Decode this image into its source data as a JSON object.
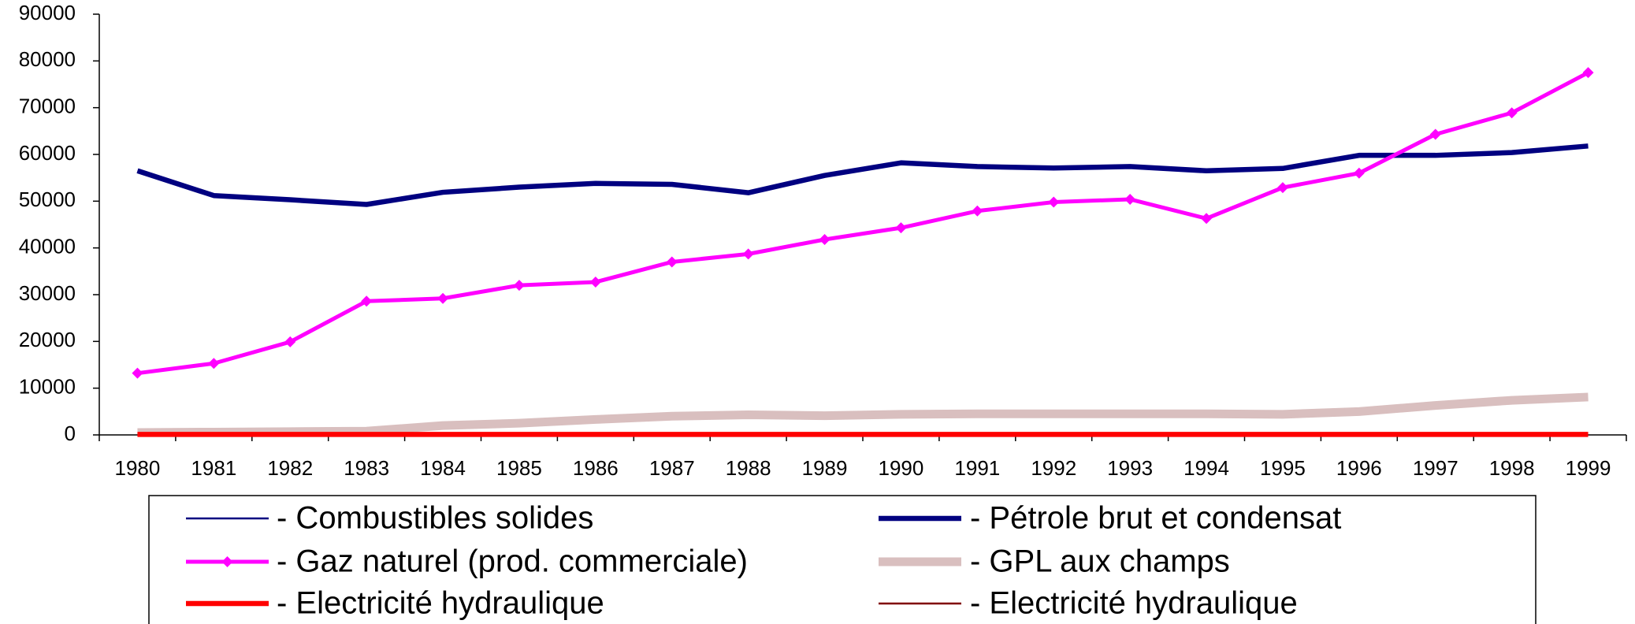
{
  "chart_data": {
    "type": "line",
    "categories": [
      "1980",
      "1981",
      "1982",
      "1983",
      "1984",
      "1985",
      "1986",
      "1987",
      "1988",
      "1989",
      "1990",
      "1991",
      "1992",
      "1993",
      "1994",
      "1995",
      "1996",
      "1997",
      "1998",
      "1999"
    ],
    "series": [
      {
        "name": "- Combustibles solides",
        "color": "#000080",
        "values": [
          0,
          0,
          0,
          0,
          0,
          0,
          0,
          0,
          0,
          0,
          0,
          0,
          0,
          0,
          0,
          0,
          0,
          0,
          0,
          0
        ]
      },
      {
        "name": "- Pétrole brut et condensat",
        "color": "#000080",
        "values": [
          56500,
          51200,
          50300,
          49300,
          51900,
          53000,
          53800,
          53600,
          51800,
          55500,
          58200,
          57400,
          57100,
          57400,
          56500,
          57000,
          59800,
          59800,
          60400,
          61800
        ]
      },
      {
        "name": "- Gaz naturel (prod. commerciale)",
        "color": "#ff00ff",
        "marker": "diamond",
        "values": [
          13200,
          15300,
          19900,
          28600,
          29200,
          32000,
          32700,
          37000,
          38700,
          41800,
          44300,
          47900,
          49800,
          50400,
          46300,
          52900,
          56000,
          64300,
          68900,
          77500
        ]
      },
      {
        "name": "- GPL aux champs",
        "color": "#d9bfbf",
        "values": [
          500,
          600,
          700,
          800,
          2000,
          2500,
          3300,
          4000,
          4300,
          4100,
          4400,
          4500,
          4500,
          4500,
          4500,
          4400,
          5000,
          6300,
          7400,
          8100
        ]
      },
      {
        "name": "- Electricité hydraulique",
        "color": "#ff0000",
        "values": [
          100,
          100,
          100,
          100,
          100,
          100,
          100,
          100,
          100,
          100,
          100,
          100,
          100,
          100,
          100,
          100,
          100,
          100,
          100,
          100
        ]
      },
      {
        "name": "- Electricité hydraulique",
        "color": "#800000",
        "values": [
          0,
          0,
          0,
          0,
          0,
          0,
          0,
          0,
          0,
          0,
          0,
          0,
          0,
          0,
          0,
          0,
          0,
          0,
          0,
          0
        ]
      }
    ],
    "ylim": [
      0,
      90000
    ],
    "yticks": [
      0,
      10000,
      20000,
      30000,
      40000,
      50000,
      60000,
      70000,
      80000,
      90000
    ]
  }
}
